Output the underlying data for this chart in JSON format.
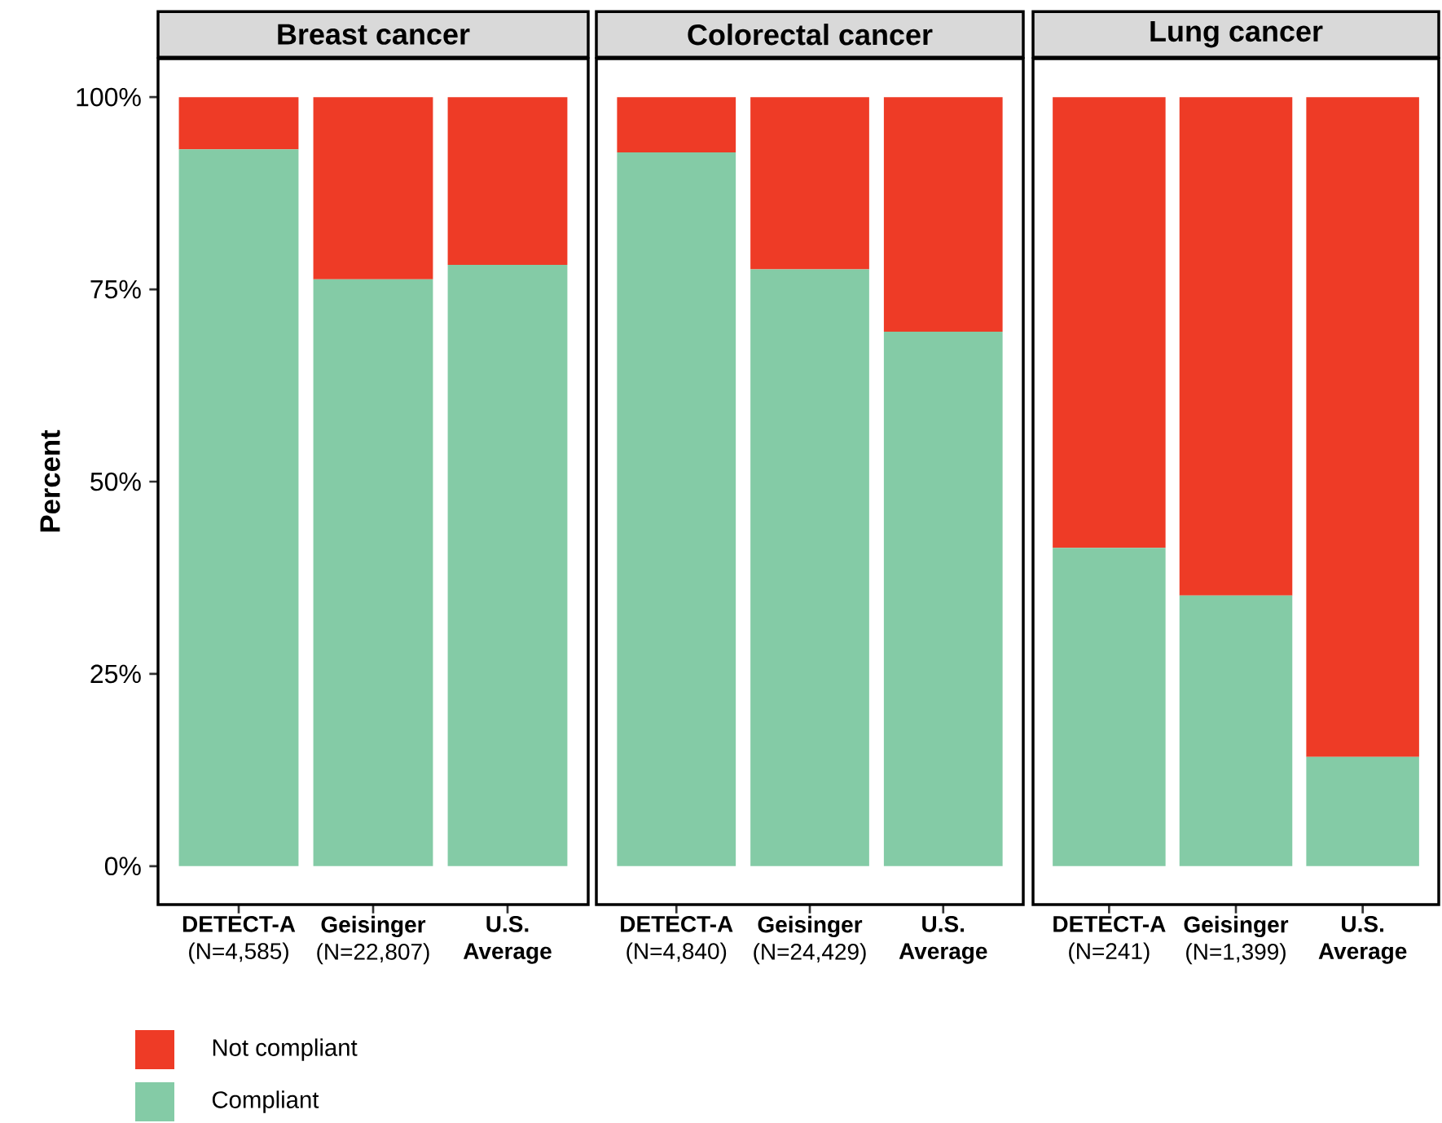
{
  "chart_data": [
    {
      "type": "bar",
      "title": "Breast cancer",
      "ylabel": "Percent",
      "stacked": true,
      "legend": "bottom left",
      "categories": [
        "**DETECT-A** (N=4,585)",
        "**Geisinger** (N=22,807)",
        "**U.S. Average**"
      ],
      "series": [
        {
          "name": "Compliant",
          "color": "#84cba6",
          "values": [
            93.2,
            76.3,
            78.2
          ]
        },
        {
          "name": "Not compliant",
          "color": "#ee3b26",
          "values": [
            6.8,
            23.7,
            21.8
          ]
        }
      ],
      "ylim": [
        -5,
        105
      ],
      "yticks": [
        {
          "value": 0,
          "label": "0%"
        },
        {
          "value": 25,
          "label": "25%"
        },
        {
          "value": 50,
          "label": "50%"
        },
        {
          "value": 75,
          "label": "75%"
        },
        {
          "value": 100,
          "label": "100%"
        }
      ]
    },
    {
      "type": "bar",
      "title": "Colorectal cancer",
      "stacked": true,
      "tick_labels": "x",
      "categories": [
        "**DETECT-A** (N=4,840)",
        "**Geisinger** (N=24,429)",
        "**U.S. Average**"
      ],
      "series": [
        {
          "color": "#84cba6",
          "values": [
            92.8,
            77.6,
            69.5
          ]
        },
        {
          "color": "#ee3b26",
          "values": [
            7.2,
            22.4,
            30.5
          ]
        }
      ],
      "ylim": [
        -5,
        105
      ]
    },
    {
      "type": "bar",
      "title": "Lung cancer",
      "stacked": true,
      "tick_labels": "x",
      "categories": [
        "**DETECT-A** (N=241)",
        "**Geisinger** (N=1,399)",
        "**U.S. Average**"
      ],
      "series": [
        {
          "color": "#84cba6",
          "values": [
            41.4,
            35.2,
            14.2
          ]
        },
        {
          "color": "#ee3b26",
          "values": [
            58.6,
            64.8,
            85.8
          ]
        }
      ],
      "ylim": [
        -5,
        105
      ]
    }
  ]
}
